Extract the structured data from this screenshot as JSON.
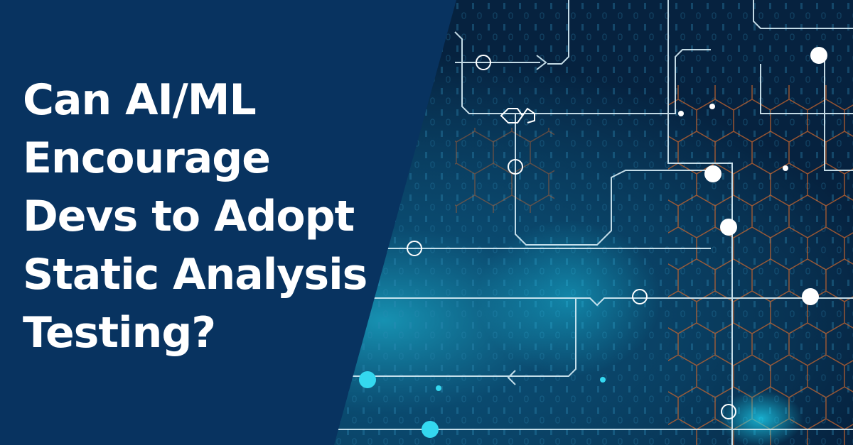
{
  "headline": {
    "lines": [
      "Can AI/ML",
      "Encourage",
      "Devs to Adopt",
      "Static Analysis",
      "Testing?"
    ]
  }
}
